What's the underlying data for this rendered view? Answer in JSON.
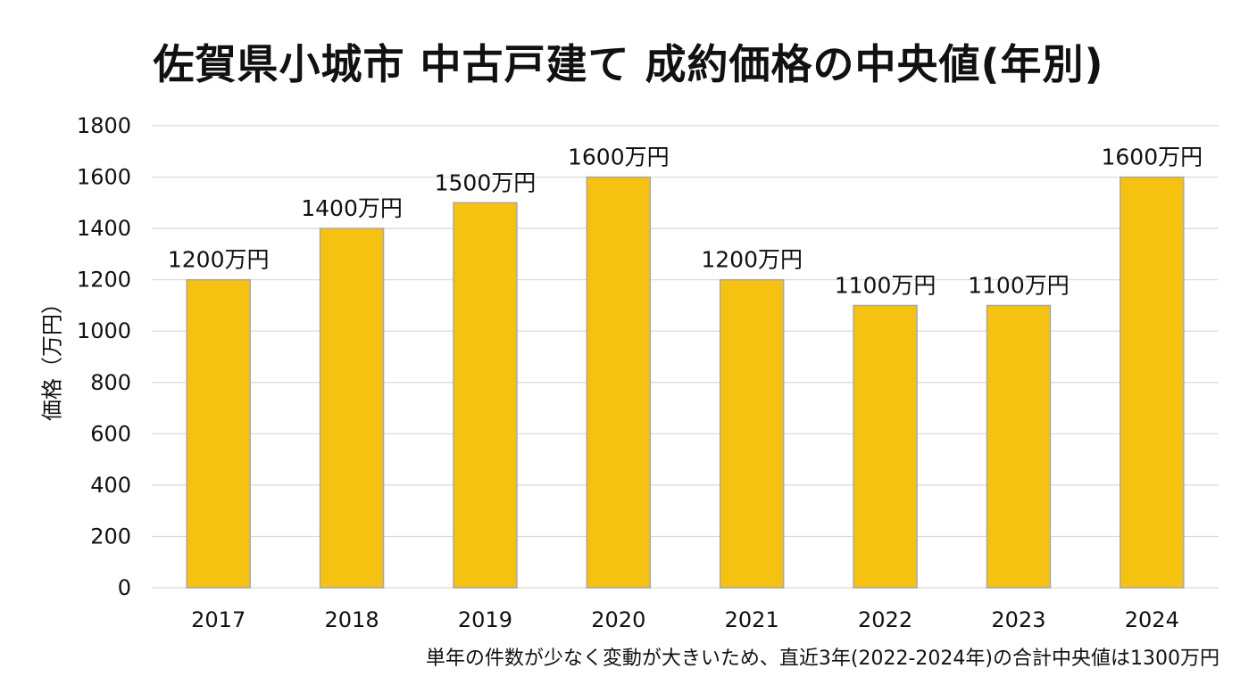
{
  "chart_data": {
    "type": "bar",
    "title": "佐賀県小城市 中古戸建て 成約価格の中央値(年別)",
    "xlabel": "",
    "ylabel": "価格（万円）",
    "categories": [
      "2017",
      "2018",
      "2019",
      "2020",
      "2021",
      "2022",
      "2023",
      "2024"
    ],
    "values": [
      1200,
      1400,
      1500,
      1600,
      1200,
      1100,
      1100,
      1600
    ],
    "data_labels": [
      "1200万円",
      "1400万円",
      "1500万円",
      "1600万円",
      "1200万円",
      "1100万円",
      "1100万円",
      "1600万円"
    ],
    "yticks": [
      "0",
      "200",
      "400",
      "600",
      "800",
      "1000",
      "1200",
      "1400",
      "1600",
      "1800"
    ],
    "ylim": [
      0,
      1800
    ],
    "grid": true,
    "bar_color": "#F6C211",
    "bar_border_color": "#A8A8A8",
    "grid_color": "#D9D9D9",
    "footnote": "単年の件数が少なく変動が大きいため、直近3年(2022-2024年)の合計中央値は1300万円"
  }
}
